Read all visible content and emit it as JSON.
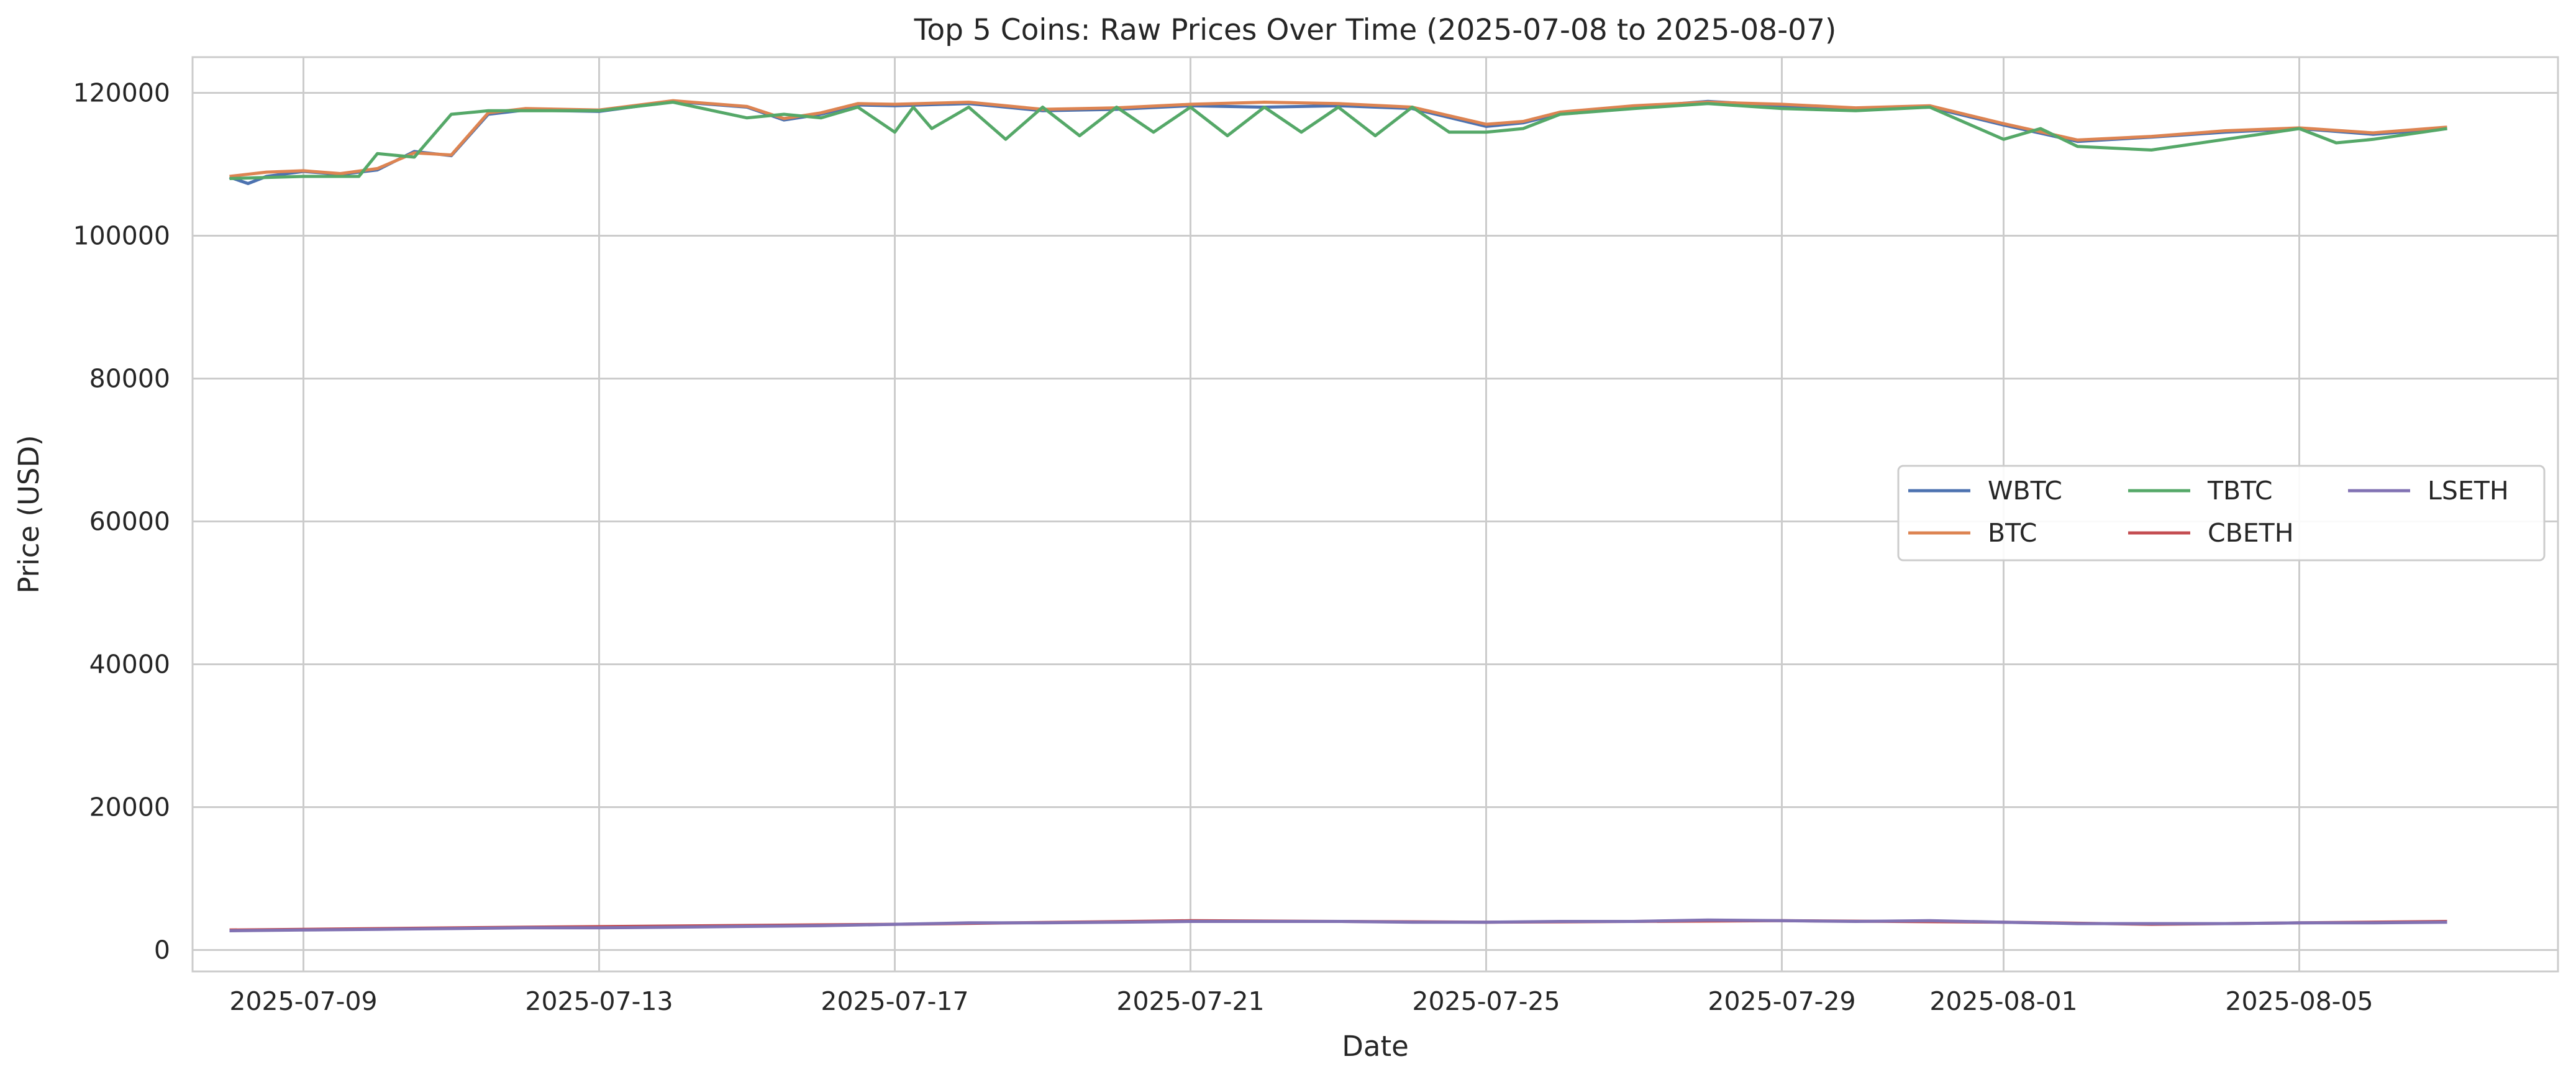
{
  "chart_data": {
    "type": "line",
    "title": "Top 5 Coins: Raw Prices Over Time (2025-07-08 to 2025-08-07)",
    "xlabel": "Date",
    "ylabel": "Price (USD)",
    "xlim": [
      "2025-07-07T12:00",
      "2025-08-08T12:00"
    ],
    "ylim": [
      -3000,
      125000
    ],
    "grid": true,
    "legend_position": "center-right",
    "legend_columns": 3,
    "x_ticks": [
      "2025-07-09",
      "2025-07-13",
      "2025-07-17",
      "2025-07-21",
      "2025-07-25",
      "2025-07-29",
      "2025-08-01",
      "2025-08-05"
    ],
    "y_ticks": [
      0,
      20000,
      40000,
      60000,
      80000,
      100000,
      120000
    ],
    "series": [
      {
        "name": "WBTC",
        "color": "#4c72b0",
        "x": [
          "2025-07-08",
          "2025-07-08T06:00",
          "2025-07-08T12:00",
          "2025-07-09",
          "2025-07-09T12:00",
          "2025-07-10",
          "2025-07-10T12:00",
          "2025-07-11",
          "2025-07-11T12:00",
          "2025-07-12",
          "2025-07-13",
          "2025-07-14",
          "2025-07-15",
          "2025-07-15T12:00",
          "2025-07-16",
          "2025-07-16T12:00",
          "2025-07-17",
          "2025-07-18",
          "2025-07-19",
          "2025-07-20",
          "2025-07-21",
          "2025-07-22",
          "2025-07-23",
          "2025-07-24",
          "2025-07-25",
          "2025-07-25T12:00",
          "2025-07-26",
          "2025-07-27",
          "2025-07-28",
          "2025-07-29",
          "2025-07-30",
          "2025-07-31",
          "2025-08-01",
          "2025-08-02",
          "2025-08-03",
          "2025-08-04",
          "2025-08-05",
          "2025-08-06",
          "2025-08-07"
        ],
        "y": [
          108200,
          107300,
          108300,
          109000,
          108600,
          109200,
          111800,
          111200,
          117000,
          117600,
          117400,
          118800,
          118000,
          116200,
          117000,
          118300,
          118200,
          118500,
          117500,
          117700,
          118200,
          118000,
          118200,
          117800,
          115300,
          115800,
          117100,
          118000,
          118800,
          118200,
          117700,
          118000,
          115500,
          113200,
          113800,
          114500,
          115000,
          114200,
          115000
        ]
      },
      {
        "name": "BTC",
        "color": "#dd8452",
        "x": [
          "2025-07-08",
          "2025-07-08T12:00",
          "2025-07-09",
          "2025-07-09T12:00",
          "2025-07-10",
          "2025-07-10T12:00",
          "2025-07-11",
          "2025-07-11T12:00",
          "2025-07-12",
          "2025-07-13",
          "2025-07-14",
          "2025-07-15",
          "2025-07-15T12:00",
          "2025-07-16",
          "2025-07-16T12:00",
          "2025-07-17",
          "2025-07-18",
          "2025-07-19",
          "2025-07-20",
          "2025-07-21",
          "2025-07-22",
          "2025-07-23",
          "2025-07-24",
          "2025-07-25",
          "2025-07-25T12:00",
          "2025-07-26",
          "2025-07-27",
          "2025-07-28",
          "2025-07-29",
          "2025-07-30",
          "2025-07-31",
          "2025-08-01",
          "2025-08-02",
          "2025-08-03",
          "2025-08-04",
          "2025-08-05",
          "2025-08-06",
          "2025-08-07"
        ],
        "y": [
          108300,
          108900,
          109100,
          108700,
          109400,
          111600,
          111300,
          117200,
          117800,
          117600,
          118900,
          118100,
          116400,
          117200,
          118500,
          118400,
          118700,
          117700,
          117900,
          118400,
          118700,
          118500,
          118000,
          115600,
          116000,
          117300,
          118200,
          118700,
          118400,
          117900,
          118200,
          115700,
          113400,
          113900,
          114700,
          115100,
          114400,
          115200
        ]
      },
      {
        "name": "TBTC",
        "color": "#55a868",
        "x": [
          "2025-07-08",
          "2025-07-09",
          "2025-07-09T18:00",
          "2025-07-10",
          "2025-07-10T12:00",
          "2025-07-11",
          "2025-07-11T12:00",
          "2025-07-12",
          "2025-07-13",
          "2025-07-14",
          "2025-07-15",
          "2025-07-15T12:00",
          "2025-07-16",
          "2025-07-16T12:00",
          "2025-07-17",
          "2025-07-17T06:00",
          "2025-07-17T12:00",
          "2025-07-18",
          "2025-07-18T12:00",
          "2025-07-19",
          "2025-07-19T12:00",
          "2025-07-20",
          "2025-07-20T12:00",
          "2025-07-21",
          "2025-07-21T12:00",
          "2025-07-22",
          "2025-07-22T12:00",
          "2025-07-23",
          "2025-07-23T12:00",
          "2025-07-24",
          "2025-07-24T12:00",
          "2025-07-25",
          "2025-07-25T12:00",
          "2025-07-26",
          "2025-07-27",
          "2025-07-28",
          "2025-07-29",
          "2025-07-30",
          "2025-07-31",
          "2025-08-01",
          "2025-08-01T12:00",
          "2025-08-02",
          "2025-08-03",
          "2025-08-04",
          "2025-08-05",
          "2025-08-05T12:00",
          "2025-08-06",
          "2025-08-07"
        ],
        "y": [
          108000,
          108300,
          108300,
          111500,
          111000,
          117000,
          117500,
          117500,
          117500,
          118700,
          116500,
          117000,
          116500,
          118000,
          114500,
          118000,
          115000,
          118000,
          113500,
          118000,
          114000,
          118000,
          114500,
          118000,
          114000,
          118000,
          114500,
          118000,
          114000,
          118000,
          114500,
          114500,
          115000,
          117000,
          117800,
          118500,
          117800,
          117500,
          118000,
          113500,
          115000,
          112500,
          112000,
          113500,
          115000,
          113000,
          113500,
          115000
        ]
      },
      {
        "name": "CBETH",
        "color": "#c44e52",
        "x": [
          "2025-07-08",
          "2025-07-12",
          "2025-07-17",
          "2025-07-21",
          "2025-07-25",
          "2025-07-29",
          "2025-08-01",
          "2025-08-03",
          "2025-08-05",
          "2025-08-07"
        ],
        "y": [
          2800,
          3200,
          3600,
          4100,
          3900,
          4100,
          3900,
          3600,
          3800,
          4000
        ]
      },
      {
        "name": "LSETH",
        "color": "#8172b3",
        "x": [
          "2025-07-08",
          "2025-07-09",
          "2025-07-10",
          "2025-07-11",
          "2025-07-12",
          "2025-07-13",
          "2025-07-14",
          "2025-07-15",
          "2025-07-16",
          "2025-07-17",
          "2025-07-18",
          "2025-07-19",
          "2025-07-20",
          "2025-07-21",
          "2025-07-22",
          "2025-07-23",
          "2025-07-24",
          "2025-07-25",
          "2025-07-26",
          "2025-07-27",
          "2025-07-28",
          "2025-07-29",
          "2025-07-30",
          "2025-07-31",
          "2025-08-01",
          "2025-08-02",
          "2025-08-03",
          "2025-08-04",
          "2025-08-05",
          "2025-08-06",
          "2025-08-07"
        ],
        "y": [
          2700,
          2800,
          2900,
          3000,
          3100,
          3100,
          3200,
          3300,
          3400,
          3600,
          3800,
          3800,
          3900,
          4000,
          4000,
          4000,
          3900,
          3900,
          4000,
          4000,
          4200,
          4100,
          4000,
          4100,
          3900,
          3700,
          3700,
          3700,
          3800,
          3800,
          3900
        ]
      }
    ]
  }
}
